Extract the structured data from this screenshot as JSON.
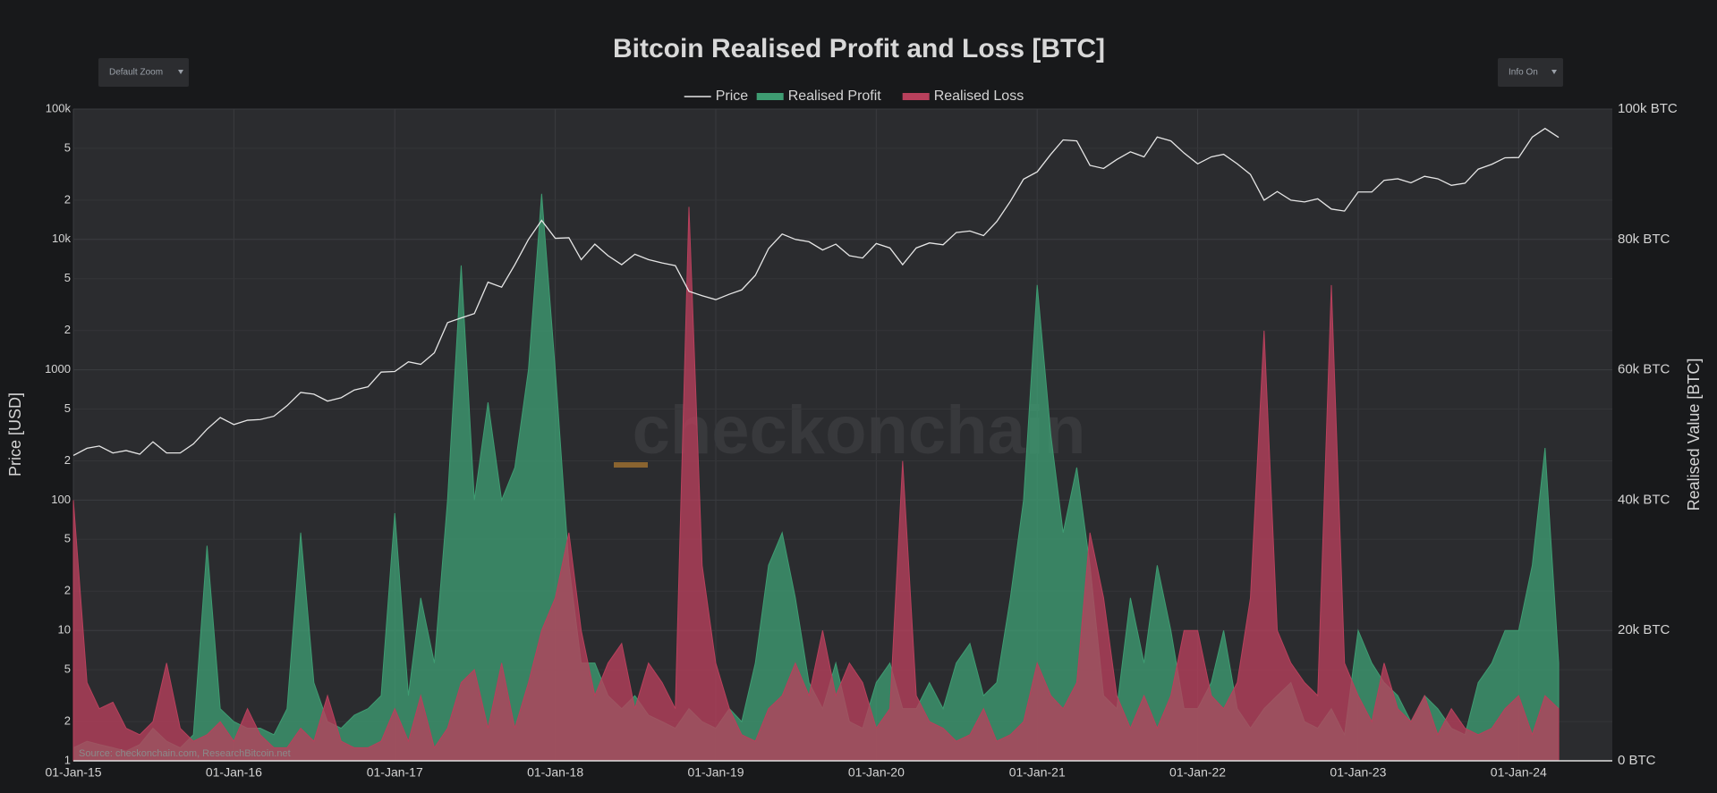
{
  "chart_data": {
    "type": "area",
    "title": "Bitcoin Realised Profit and Loss [BTC]",
    "controls": {
      "zoom": "Default Zoom",
      "info": "Info On"
    },
    "y_label": "Price [USD]",
    "y2_label": "Realised Value [BTC]",
    "source": "Source: checkonchain.com, ResearchBitcoin.net",
    "watermark": "checkonchain",
    "log_y": true,
    "grid": true,
    "legend": "top",
    "xlim": [
      "2015-01-01",
      "2024-08-01"
    ],
    "xticks": [
      {
        "value": "2015-01-01",
        "label": "01-Jan-15"
      },
      {
        "value": "2016-01-01",
        "label": "01-Jan-16"
      },
      {
        "value": "2017-01-01",
        "label": "01-Jan-17"
      },
      {
        "value": "2018-01-01",
        "label": "01-Jan-18"
      },
      {
        "value": "2019-01-01",
        "label": "01-Jan-19"
      },
      {
        "value": "2020-01-01",
        "label": "01-Jan-20"
      },
      {
        "value": "2021-01-01",
        "label": "01-Jan-21"
      },
      {
        "value": "2022-01-01",
        "label": "01-Jan-22"
      },
      {
        "value": "2023-01-01",
        "label": "01-Jan-23"
      },
      {
        "value": "2024-01-01",
        "label": "01-Jan-24"
      }
    ],
    "ylim": [
      1,
      100000
    ],
    "yticks": [
      1,
      2,
      5,
      10,
      {
        "value": 20,
        "label": "2"
      },
      {
        "value": 50,
        "label": "5"
      },
      100,
      {
        "value": 200,
        "label": "2"
      },
      {
        "value": 500,
        "label": "5"
      },
      1000,
      {
        "value": 2000,
        "label": "2"
      },
      {
        "value": 5000,
        "label": "5"
      },
      {
        "value": 10000,
        "label": "10k"
      },
      {
        "value": 20000,
        "label": "2"
      },
      {
        "value": 50000,
        "label": "5"
      },
      {
        "value": 100000,
        "label": "100k"
      }
    ],
    "y2lim": [
      0,
      100000
    ],
    "y2ticks": [
      {
        "value": 0,
        "label": "0 BTC"
      },
      {
        "value": 20000,
        "label": "20k BTC"
      },
      {
        "value": 40000,
        "label": "40k BTC"
      },
      {
        "value": 60000,
        "label": "60k BTC"
      },
      {
        "value": 80000,
        "label": "80k BTC"
      },
      {
        "value": 100000,
        "label": "100k BTC"
      }
    ],
    "x": [
      "2015-01-01",
      "2015-02-01",
      "2015-03-01",
      "2015-04-01",
      "2015-05-01",
      "2015-06-01",
      "2015-07-01",
      "2015-08-01",
      "2015-09-01",
      "2015-10-01",
      "2015-11-01",
      "2015-12-01",
      "2016-01-01",
      "2016-02-01",
      "2016-03-01",
      "2016-04-01",
      "2016-05-01",
      "2016-06-01",
      "2016-07-01",
      "2016-08-01",
      "2016-09-01",
      "2016-10-01",
      "2016-11-01",
      "2016-12-01",
      "2017-01-01",
      "2017-02-01",
      "2017-03-01",
      "2017-04-01",
      "2017-05-01",
      "2017-06-01",
      "2017-07-01",
      "2017-08-01",
      "2017-09-01",
      "2017-10-01",
      "2017-11-01",
      "2017-12-01",
      "2018-01-01",
      "2018-02-01",
      "2018-03-01",
      "2018-04-01",
      "2018-05-01",
      "2018-06-01",
      "2018-07-01",
      "2018-08-01",
      "2018-09-01",
      "2018-10-01",
      "2018-11-01",
      "2018-12-01",
      "2019-01-01",
      "2019-02-01",
      "2019-03-01",
      "2019-04-01",
      "2019-05-01",
      "2019-06-01",
      "2019-07-01",
      "2019-08-01",
      "2019-09-01",
      "2019-10-01",
      "2019-11-01",
      "2019-12-01",
      "2020-01-01",
      "2020-02-01",
      "2020-03-01",
      "2020-04-01",
      "2020-05-01",
      "2020-06-01",
      "2020-07-01",
      "2020-08-01",
      "2020-09-01",
      "2020-10-01",
      "2020-11-01",
      "2020-12-01",
      "2021-01-01",
      "2021-02-01",
      "2021-03-01",
      "2021-04-01",
      "2021-05-01",
      "2021-06-01",
      "2021-07-01",
      "2021-08-01",
      "2021-09-01",
      "2021-10-01",
      "2021-11-01",
      "2021-12-01",
      "2022-01-01",
      "2022-02-01",
      "2022-03-01",
      "2022-04-01",
      "2022-05-01",
      "2022-06-01",
      "2022-07-01",
      "2022-08-01",
      "2022-09-01",
      "2022-10-01",
      "2022-11-01",
      "2022-12-01",
      "2023-01-01",
      "2023-02-01",
      "2023-03-01",
      "2023-04-01",
      "2023-05-01",
      "2023-06-01",
      "2023-07-01",
      "2023-08-01",
      "2023-09-01",
      "2023-10-01",
      "2023-11-01",
      "2023-12-01",
      "2024-01-01",
      "2024-02-01",
      "2024-03-01",
      "2024-04-01"
    ],
    "series": [
      {
        "name": "Realised Profit",
        "type": "area",
        "axis": "y2",
        "color": "#3e9c72",
        "values": [
          2000,
          3000,
          2500,
          2000,
          1500,
          2500,
          5000,
          3000,
          2000,
          4000,
          33000,
          8000,
          6000,
          5000,
          5000,
          4000,
          8000,
          35000,
          12000,
          6000,
          5000,
          7000,
          8000,
          10000,
          38000,
          10000,
          25000,
          15000,
          40000,
          76000,
          40000,
          55000,
          40000,
          45000,
          60000,
          87000,
          60000,
          30000,
          15000,
          15000,
          10000,
          8000,
          10000,
          7000,
          6000,
          5000,
          8000,
          6000,
          5000,
          8000,
          6000,
          15000,
          30000,
          35000,
          25000,
          12000,
          8000,
          15000,
          6000,
          5000,
          12000,
          15000,
          8000,
          8000,
          12000,
          8000,
          15000,
          18000,
          10000,
          12000,
          25000,
          40000,
          73000,
          50000,
          35000,
          45000,
          30000,
          10000,
          8000,
          25000,
          15000,
          30000,
          20000,
          8000,
          8000,
          12000,
          20000,
          8000,
          5000,
          8000,
          10000,
          12000,
          6000,
          5000,
          8000,
          4000,
          20000,
          15000,
          12000,
          10000,
          6000,
          10000,
          8000,
          5000,
          4000,
          12000,
          15000,
          20000,
          20000,
          30000,
          48000,
          15000
        ]
      },
      {
        "name": "Realised Loss",
        "type": "area",
        "axis": "y2",
        "color": "#b8405c",
        "values": [
          40000,
          12000,
          8000,
          9000,
          5000,
          4000,
          6000,
          15000,
          5000,
          3000,
          4000,
          6000,
          3000,
          8000,
          4000,
          2000,
          2000,
          5000,
          3000,
          10000,
          3000,
          2000,
          2000,
          3000,
          8000,
          3000,
          10000,
          2000,
          5000,
          12000,
          14000,
          5000,
          15000,
          5000,
          12000,
          20000,
          25000,
          35000,
          20000,
          10000,
          15000,
          18000,
          8000,
          15000,
          12000,
          8000,
          85000,
          30000,
          15000,
          8000,
          4000,
          3000,
          8000,
          10000,
          15000,
          10000,
          20000,
          10000,
          15000,
          12000,
          5000,
          8000,
          46000,
          10000,
          6000,
          5000,
          3000,
          4000,
          8000,
          3000,
          4000,
          6000,
          15000,
          10000,
          8000,
          12000,
          35000,
          25000,
          10000,
          5000,
          10000,
          5000,
          10000,
          20000,
          20000,
          10000,
          8000,
          12000,
          25000,
          66000,
          20000,
          15000,
          12000,
          10000,
          73000,
          15000,
          10000,
          6000,
          15000,
          8000,
          6000,
          10000,
          4000,
          8000,
          5000,
          4000,
          5000,
          8000,
          10000,
          4000,
          10000,
          8000
        ]
      },
      {
        "name": "Price",
        "type": "line",
        "axis": "y",
        "color": "#e6e6e6",
        "values": [
          220,
          250,
          260,
          230,
          240,
          225,
          280,
          230,
          230,
          270,
          350,
          430,
          380,
          410,
          415,
          440,
          530,
          670,
          650,
          575,
          610,
          700,
          740,
          960,
          970,
          1150,
          1100,
          1350,
          2300,
          2500,
          2700,
          4700,
          4300,
          6400,
          10000,
          14000,
          10200,
          10300,
          7000,
          9200,
          7500,
          6400,
          7700,
          7000,
          6600,
          6300,
          4000,
          3700,
          3450,
          3800,
          4100,
          5300,
          8500,
          11000,
          10000,
          9600,
          8300,
          9200,
          7500,
          7200,
          9300,
          8600,
          6400,
          8600,
          9400,
          9100,
          11300,
          11600,
          10700,
          13700,
          19600,
          29000,
          33000,
          45000,
          58000,
          57000,
          37000,
          35000,
          41000,
          47000,
          43000,
          61000,
          57000,
          46000,
          38000,
          43000,
          45000,
          38000,
          31500,
          20000,
          23300,
          20000,
          19400,
          20500,
          17100,
          16500,
          23100,
          23100,
          28400,
          29200,
          27200,
          30500,
          29200,
          26000,
          27000,
          34600,
          37700,
          42300,
          42500,
          61000,
          71000,
          60600
        ]
      }
    ]
  }
}
